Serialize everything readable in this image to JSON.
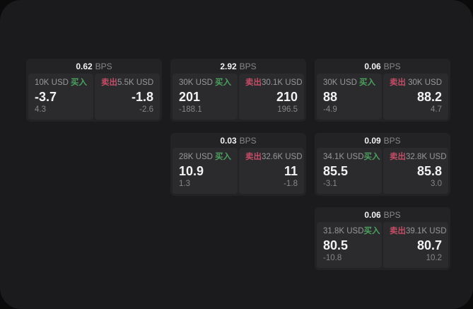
{
  "colors": {
    "page_bg": "#0b0b0c",
    "frame_bg": "#1b1b1d",
    "card_bg": "#232325",
    "panel_bg": "#2b2b2e",
    "value_text": "#f2f2f2",
    "label_text": "#98989a",
    "muted_text": "#87878a",
    "buy_color": "#4da05f",
    "sell_color": "#c24d66"
  },
  "labels": {
    "bps_suffix": "BPS",
    "buy": "买入",
    "sell": "卖出"
  },
  "cards": [
    {
      "row": 1,
      "col": 1,
      "bps": "0.62",
      "buy": {
        "amount": "10K USD",
        "value": "-3.7",
        "delta": "4.3"
      },
      "sell": {
        "amount": "5.5K USD",
        "value": "-1.8",
        "delta": "-2.6"
      }
    },
    {
      "row": 1,
      "col": 2,
      "bps": "2.92",
      "buy": {
        "amount": "30K USD",
        "value": "201",
        "delta": "-188.1"
      },
      "sell": {
        "amount": "30.1K USD",
        "value": "210",
        "delta": "196.5"
      }
    },
    {
      "row": 1,
      "col": 3,
      "bps": "0.06",
      "buy": {
        "amount": "30K USD",
        "value": "88",
        "delta": "-4.9"
      },
      "sell": {
        "amount": "30K USD",
        "value": "88.2",
        "delta": "4.7"
      }
    },
    {
      "row": 2,
      "col": 2,
      "bps": "0.03",
      "buy": {
        "amount": "28K USD",
        "value": "10.9",
        "delta": "1.3"
      },
      "sell": {
        "amount": "32.6K USD",
        "value": "11",
        "delta": "-1.8"
      }
    },
    {
      "row": 2,
      "col": 3,
      "bps": "0.09",
      "buy": {
        "amount": "34.1K USD",
        "value": "85.5",
        "delta": "-3.1"
      },
      "sell": {
        "amount": "32.8K USD",
        "value": "85.8",
        "delta": "3.0"
      }
    },
    {
      "row": 3,
      "col": 3,
      "bps": "0.06",
      "buy": {
        "amount": "31.8K USD",
        "value": "80.5",
        "delta": "-10.8"
      },
      "sell": {
        "amount": "39.1K USD",
        "value": "80.7",
        "delta": "10.2"
      }
    }
  ]
}
